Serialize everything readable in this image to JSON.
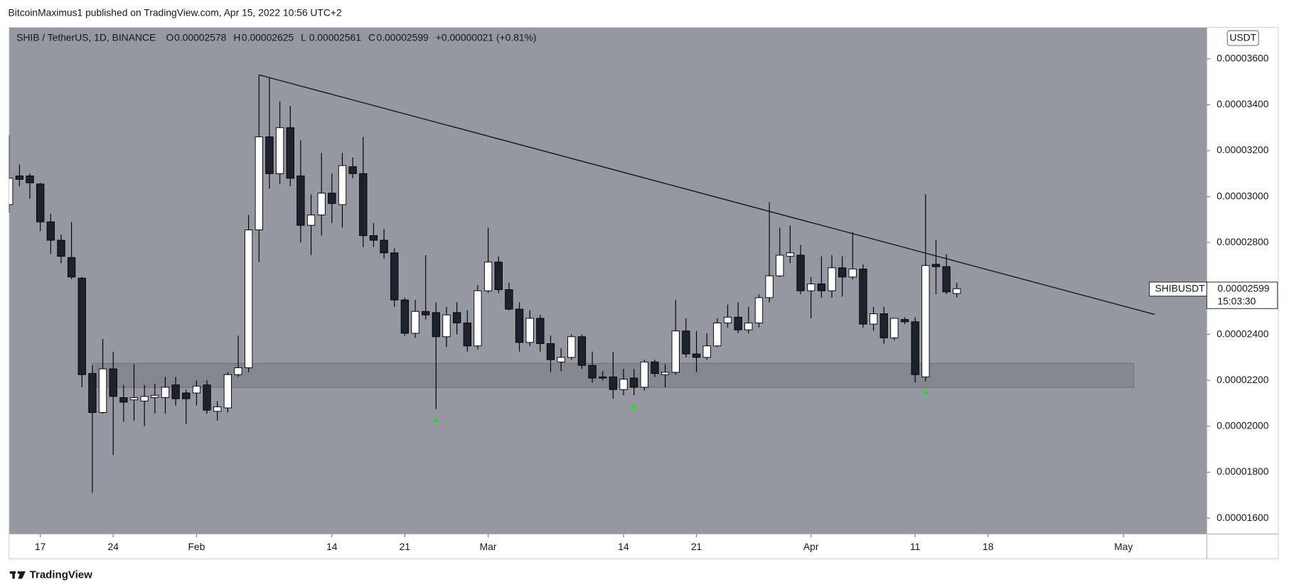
{
  "chart_data": {
    "type": "candlestick",
    "publisher_line": "BitcoinMaximus1 published on TradingView.com, Apr 15, 2022 10:56 UTC+2",
    "legend": {
      "symbol": "SHIB / TetherUS, 1D, BINANCE",
      "fields": [
        "O",
        "H",
        "L",
        "C"
      ],
      "change": "+0.00000021 (+0.81%)"
    },
    "currency": "USDT",
    "price_label": {
      "symbol": "SHIBUSDT",
      "countdown": "15:03:30"
    },
    "brand": "TradingView",
    "up_color": "#ffffff",
    "down_color": "#1e222d",
    "background": "#9598a1",
    "x": [
      "2022-01-14",
      "2022-01-15",
      "2022-01-16",
      "2022-01-17",
      "2022-01-18",
      "2022-01-19",
      "2022-01-20",
      "2022-01-21",
      "2022-01-22",
      "2022-01-23",
      "2022-01-24",
      "2022-01-25",
      "2022-01-26",
      "2022-01-27",
      "2022-01-28",
      "2022-01-29",
      "2022-01-30",
      "2022-01-31",
      "2022-02-01",
      "2022-02-02",
      "2022-02-03",
      "2022-02-04",
      "2022-02-05",
      "2022-02-06",
      "2022-02-07",
      "2022-02-08",
      "2022-02-09",
      "2022-02-10",
      "2022-02-11",
      "2022-02-12",
      "2022-02-13",
      "2022-02-14",
      "2022-02-15",
      "2022-02-16",
      "2022-02-17",
      "2022-02-18",
      "2022-02-19",
      "2022-02-20",
      "2022-02-21",
      "2022-02-22",
      "2022-02-23",
      "2022-02-24",
      "2022-02-25",
      "2022-02-26",
      "2022-02-27",
      "2022-02-28",
      "2022-03-01",
      "2022-03-02",
      "2022-03-03",
      "2022-03-04",
      "2022-03-05",
      "2022-03-06",
      "2022-03-07",
      "2022-03-08",
      "2022-03-09",
      "2022-03-10",
      "2022-03-11",
      "2022-03-12",
      "2022-03-13",
      "2022-03-14",
      "2022-03-15",
      "2022-03-16",
      "2022-03-17",
      "2022-03-18",
      "2022-03-19",
      "2022-03-20",
      "2022-03-21",
      "2022-03-22",
      "2022-03-23",
      "2022-03-24",
      "2022-03-25",
      "2022-03-26",
      "2022-03-27",
      "2022-03-28",
      "2022-03-29",
      "2022-03-30",
      "2022-03-31",
      "2022-04-01",
      "2022-04-02",
      "2022-04-03",
      "2022-04-04",
      "2022-04-05",
      "2022-04-06",
      "2022-04-07",
      "2022-04-08",
      "2022-04-09",
      "2022-04-10",
      "2022-04-11",
      "2022-04-12",
      "2022-04-13",
      "2022-04-14",
      "2022-04-15"
    ],
    "open": [
      2.965e-05,
      3.09e-05,
      3.09e-05,
      3.055e-05,
      2.89e-05,
      2.81e-05,
      2.735e-05,
      2.645e-05,
      2.23e-05,
      2.06e-05,
      2.25e-05,
      2.125e-05,
      2.115e-05,
      2.11e-05,
      2.125e-05,
      2.125e-05,
      2.18e-05,
      2.145e-05,
      2.145e-05,
      2.18e-05,
      2.065e-05,
      2.08e-05,
      2.225e-05,
      2.255e-05,
      2.855e-05,
      3.26e-05,
      3.1e-05,
      3.3e-05,
      3.09e-05,
      2.875e-05,
      2.92e-05,
      3.015e-05,
      2.965e-05,
      3.13e-05,
      3.1e-05,
      2.83e-05,
      2.81e-05,
      2.755e-05,
      2.55e-05,
      2.405e-05,
      2.5e-05,
      2.495e-05,
      2.39e-05,
      2.495e-05,
      2.45e-05,
      2.35e-05,
      2.59e-05,
      2.715e-05,
      2.595e-05,
      2.51e-05,
      2.365e-05,
      2.47e-05,
      2.36e-05,
      2.28e-05,
      2.3e-05,
      2.39e-05,
      2.265e-05,
      2.215e-05,
      2.215e-05,
      2.16e-05,
      2.21e-05,
      2.17e-05,
      2.28e-05,
      2.225e-05,
      2.235e-05,
      2.415e-05,
      2.315e-05,
      2.3e-05,
      2.35e-05,
      2.45e-05,
      2.475e-05,
      2.42e-05,
      2.45e-05,
      2.56e-05,
      2.655e-05,
      2.74e-05,
      2.745e-05,
      2.59e-05,
      2.62e-05,
      2.59e-05,
      2.69e-05,
      2.65e-05,
      2.685e-05,
      2.445e-05,
      2.49e-05,
      2.385e-05,
      2.465e-05,
      2.455e-05,
      2.215e-05,
      2.705e-05,
      2.695e-05,
      2.578e-05
    ],
    "high": [
      3.268e-05,
      3.14e-05,
      3.1e-05,
      3.06e-05,
      2.925e-05,
      2.835e-05,
      2.89e-05,
      2.65e-05,
      2.265e-05,
      2.38e-05,
      2.325e-05,
      2.18e-05,
      2.27e-05,
      2.18e-05,
      2.185e-05,
      2.215e-05,
      2.215e-05,
      2.16e-05,
      2.2e-05,
      2.2e-05,
      2.11e-05,
      2.235e-05,
      2.395e-05,
      2.92e-05,
      3.53e-05,
      3.52e-05,
      3.415e-05,
      3.395e-05,
      3.245e-05,
      3.01e-05,
      3.19e-05,
      3.1e-05,
      3.19e-05,
      3.17e-05,
      3.26e-05,
      2.885e-05,
      2.86e-05,
      2.775e-05,
      2.56e-05,
      2.55e-05,
      2.745e-05,
      2.54e-05,
      2.52e-05,
      2.54e-05,
      2.505e-05,
      2.615e-05,
      2.865e-05,
      2.74e-05,
      2.625e-05,
      2.54e-05,
      2.505e-05,
      2.485e-05,
      2.395e-05,
      2.34e-05,
      2.4e-05,
      2.4e-05,
      2.325e-05,
      2.24e-05,
      2.325e-05,
      2.25e-05,
      2.25e-05,
      2.29e-05,
      2.29e-05,
      2.27e-05,
      2.55e-05,
      2.47e-05,
      2.415e-05,
      2.405e-05,
      2.47e-05,
      2.53e-05,
      2.54e-05,
      2.52e-05,
      2.575e-05,
      2.975e-05,
      2.865e-05,
      2.875e-05,
      2.79e-05,
      2.65e-05,
      2.74e-05,
      2.745e-05,
      2.74e-05,
      2.845e-05,
      2.705e-05,
      2.52e-05,
      2.52e-05,
      2.47e-05,
      2.475e-05,
      2.475e-05,
      3.01e-05,
      2.81e-05,
      2.75e-05,
      2.625e-05
    ],
    "low": [
      2.93e-05,
      3.045e-05,
      2.99e-05,
      2.85e-05,
      2.75e-05,
      2.71e-05,
      2.64e-05,
      2.17e-05,
      1.71e-05,
      2.055e-05,
      1.875e-05,
      2.02e-05,
      2.025e-05,
      2e-05,
      2.055e-05,
      2.055e-05,
      2.09e-05,
      2.01e-05,
      2.09e-05,
      2.055e-05,
      2.025e-05,
      2.06e-05,
      2.215e-05,
      2.235e-05,
      2.715e-05,
      3.035e-05,
      3.055e-05,
      3.045e-05,
      2.8e-05,
      2.745e-05,
      2.83e-05,
      2.885e-05,
      2.865e-05,
      3.08e-05,
      2.78e-05,
      2.78e-05,
      2.73e-05,
      2.52e-05,
      2.395e-05,
      2.385e-05,
      2.465e-05,
      2.075e-05,
      2.345e-05,
      2.4e-05,
      2.325e-05,
      2.335e-05,
      2.58e-05,
      2.58e-05,
      2.505e-05,
      2.325e-05,
      2.35e-05,
      2.325e-05,
      2.235e-05,
      2.24e-05,
      2.29e-05,
      2.25e-05,
      2.19e-05,
      2.2e-05,
      2.12e-05,
      2.135e-05,
      2.135e-05,
      2.155e-05,
      2.215e-05,
      2.17e-05,
      2.225e-05,
      2.3e-05,
      2.235e-05,
      2.29e-05,
      2.345e-05,
      2.43e-05,
      2.405e-05,
      2.405e-05,
      2.43e-05,
      2.54e-05,
      2.65e-05,
      2.71e-05,
      2.575e-05,
      2.47e-05,
      2.56e-05,
      2.56e-05,
      2.565e-05,
      2.64e-05,
      2.43e-05,
      2.415e-05,
      2.36e-05,
      2.375e-05,
      2.445e-05,
      2.19e-05,
      2.195e-05,
      2.575e-05,
      2.575e-05,
      2.561e-05
    ],
    "close": [
      3.08e-05,
      3.075e-05,
      3.06e-05,
      2.89e-05,
      2.81e-05,
      2.74e-05,
      2.65e-05,
      2.225e-05,
      2.06e-05,
      2.25e-05,
      2.13e-05,
      2.105e-05,
      2.125e-05,
      2.13e-05,
      2.135e-05,
      2.17e-05,
      2.12e-05,
      2.12e-05,
      2.175e-05,
      2.07e-05,
      2.085e-05,
      2.225e-05,
      2.255e-05,
      2.855e-05,
      3.26e-05,
      3.1e-05,
      3.3e-05,
      3.08e-05,
      2.875e-05,
      2.92e-05,
      3.015e-05,
      2.97e-05,
      3.135e-05,
      3.1e-05,
      2.83e-05,
      2.81e-05,
      2.755e-05,
      2.55e-05,
      2.405e-05,
      2.5e-05,
      2.485e-05,
      2.39e-05,
      2.485e-05,
      2.45e-05,
      2.35e-05,
      2.59e-05,
      2.715e-05,
      2.595e-05,
      2.51e-05,
      2.365e-05,
      2.47e-05,
      2.36e-05,
      2.29e-05,
      2.3e-05,
      2.39e-05,
      2.265e-05,
      2.21e-05,
      2.21e-05,
      2.16e-05,
      2.205e-05,
      2.17e-05,
      2.28e-05,
      2.23e-05,
      2.235e-05,
      2.415e-05,
      2.315e-05,
      2.3e-05,
      2.35e-05,
      2.45e-05,
      2.475e-05,
      2.42e-05,
      2.45e-05,
      2.56e-05,
      2.655e-05,
      2.745e-05,
      2.755e-05,
      2.59e-05,
      2.62e-05,
      2.59e-05,
      2.69e-05,
      2.65e-05,
      2.685e-05,
      2.445e-05,
      2.49e-05,
      2.385e-05,
      2.47e-05,
      2.455e-05,
      2.225e-05,
      2.7e-05,
      2.695e-05,
      2.585e-05,
      2.599e-05
    ],
    "xlim": [
      "2022-01-14",
      "2022-05-09"
    ],
    "xticks": [
      {
        "value": "2022-01-17",
        "label": "17"
      },
      {
        "value": "2022-01-24",
        "label": "24"
      },
      {
        "value": "2022-02-01",
        "label": "Feb"
      },
      {
        "value": "2022-02-14",
        "label": "14"
      },
      {
        "value": "2022-02-21",
        "label": "21"
      },
      {
        "value": "2022-03-01",
        "label": "Mar"
      },
      {
        "value": "2022-03-14",
        "label": "14"
      },
      {
        "value": "2022-03-21",
        "label": "21"
      },
      {
        "value": "2022-04-01",
        "label": "Apr"
      },
      {
        "value": "2022-04-11",
        "label": "11"
      },
      {
        "value": "2022-04-18",
        "label": "18"
      },
      {
        "value": "2022-05-01",
        "label": "May"
      }
    ],
    "ylim": [
      1.531e-05,
      3.737e-05
    ],
    "yticks": [
      {
        "value": 1.6e-05,
        "label": "0.00001600"
      },
      {
        "value": 1.8e-05,
        "label": "0.00001800"
      },
      {
        "value": 2e-05,
        "label": "0.00002000"
      },
      {
        "value": 2.2e-05,
        "label": "0.00002200"
      },
      {
        "value": 2.4e-05,
        "label": "0.00002400"
      },
      {
        "value": 2.8e-05,
        "label": "0.00002800"
      },
      {
        "value": 3e-05,
        "label": "0.00003000"
      },
      {
        "value": 3.2e-05,
        "label": "0.00003200"
      },
      {
        "value": 3.4e-05,
        "label": "0.00003400"
      },
      {
        "value": 3.6e-05,
        "label": "0.00003600"
      }
    ],
    "grid": false,
    "trendline": {
      "x": [
        "2022-02-07",
        "2022-05-04"
      ],
      "y": [
        3.53e-05,
        2.487e-05
      ],
      "color": "#131722"
    },
    "zone": {
      "x": [
        "2022-01-22",
        "2022-05-02"
      ],
      "y": [
        2.169e-05,
        2.274e-05
      ],
      "color": "#6f727c"
    },
    "markers": {
      "x": [
        "2022-02-24",
        "2022-03-15",
        "2022-04-12"
      ],
      "color": "#22dd22"
    }
  }
}
